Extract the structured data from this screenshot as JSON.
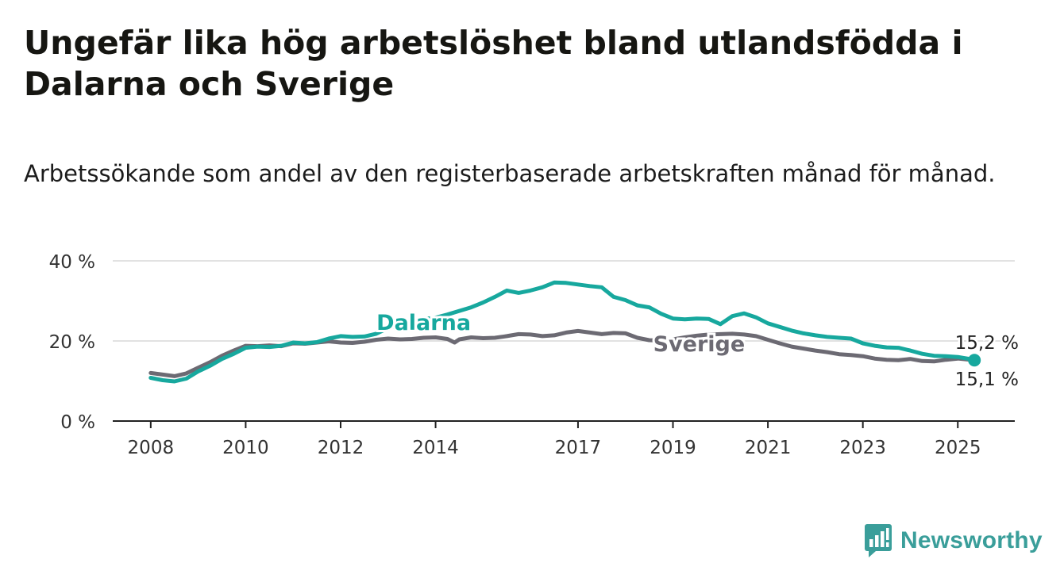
{
  "title": "Ungefär lika hög arbetslöshet bland utlandsfödda i Dalarna och Sverige",
  "subtitle": "Arbetssökande som andel av den registerbaserade arbetskraften månad för månad.",
  "brand": {
    "name": "Newsworthy",
    "color": "#3a9e9a"
  },
  "colors": {
    "dalarna": "#17a89e",
    "sverige": "#6c6a73",
    "grid": "#d9d9d9",
    "axis": "#222222"
  },
  "chart_data": {
    "type": "line",
    "xlabel": "",
    "ylabel": "",
    "ylim": [
      0,
      40
    ],
    "y_ticks": [
      "0 %",
      "20 %",
      "40 %"
    ],
    "y_tick_values": [
      0,
      20,
      40
    ],
    "x_ticks": [
      "2008",
      "2010",
      "2012",
      "2014",
      "2017",
      "2019",
      "2021",
      "2023",
      "2025"
    ],
    "x_tick_values": [
      2008,
      2010,
      2012,
      2014,
      2017,
      2019,
      2021,
      2023,
      2025
    ],
    "xlim": [
      2007.2,
      2026.2
    ],
    "grid": "horizontal",
    "series": [
      {
        "name": "Dalarna",
        "color": "#17a89e",
        "end_label": "15,2 %",
        "x": [
          2008.0,
          2008.25,
          2008.5,
          2008.75,
          2009.0,
          2009.25,
          2009.5,
          2009.75,
          2010.0,
          2010.25,
          2010.5,
          2010.75,
          2011.0,
          2011.25,
          2011.5,
          2011.75,
          2012.0,
          2012.25,
          2012.5,
          2012.75,
          2013.0,
          2013.25,
          2013.5,
          2013.75,
          2014.0,
          2014.25,
          2014.5,
          2014.75,
          2015.0,
          2015.25,
          2015.5,
          2015.75,
          2016.0,
          2016.25,
          2016.5,
          2016.75,
          2017.0,
          2017.25,
          2017.5,
          2017.75,
          2018.0,
          2018.25,
          2018.5,
          2018.75,
          2019.0,
          2019.25,
          2019.5,
          2019.75,
          2020.0,
          2020.25,
          2020.5,
          2020.75,
          2021.0,
          2021.25,
          2021.5,
          2021.75,
          2022.0,
          2022.25,
          2022.5,
          2022.75,
          2023.0,
          2023.25,
          2023.5,
          2023.75,
          2024.0,
          2024.25,
          2024.5,
          2024.75,
          2025.0,
          2025.25,
          2025.35
        ],
        "values": [
          10.8,
          10.2,
          9.9,
          10.6,
          12.4,
          13.8,
          15.5,
          16.8,
          18.3,
          18.6,
          18.5,
          18.8,
          19.6,
          19.4,
          19.7,
          20.6,
          21.2,
          21.0,
          21.1,
          21.8,
          23.2,
          24.0,
          24.8,
          25.5,
          25.8,
          26.6,
          27.5,
          28.4,
          29.6,
          31.0,
          32.6,
          32.0,
          32.6,
          33.4,
          34.6,
          34.5,
          34.1,
          33.7,
          33.4,
          31.0,
          30.2,
          28.9,
          28.4,
          26.8,
          25.6,
          25.4,
          25.6,
          25.5,
          24.2,
          26.2,
          26.9,
          25.9,
          24.4,
          23.5,
          22.6,
          21.9,
          21.4,
          21.0,
          20.8,
          20.6,
          19.4,
          18.8,
          18.4,
          18.3,
          17.6,
          16.8,
          16.3,
          16.2,
          16.0,
          15.5,
          15.2
        ]
      },
      {
        "name": "Sverige",
        "color": "#6c6a73",
        "end_label": "15,1 %",
        "x": [
          2008.0,
          2008.25,
          2008.5,
          2008.75,
          2009.0,
          2009.25,
          2009.5,
          2009.75,
          2010.0,
          2010.25,
          2010.5,
          2010.75,
          2011.0,
          2011.25,
          2011.5,
          2011.75,
          2012.0,
          2012.25,
          2012.5,
          2012.75,
          2013.0,
          2013.25,
          2013.5,
          2013.75,
          2014.0,
          2014.25,
          2014.4,
          2014.5,
          2014.75,
          2015.0,
          2015.25,
          2015.5,
          2015.75,
          2016.0,
          2016.25,
          2016.5,
          2016.75,
          2017.0,
          2017.25,
          2017.5,
          2017.75,
          2018.0,
          2018.25,
          2018.5,
          2018.75,
          2019.0,
          2019.25,
          2019.5,
          2019.75,
          2020.0,
          2020.25,
          2020.5,
          2020.75,
          2021.0,
          2021.25,
          2021.5,
          2021.75,
          2022.0,
          2022.25,
          2022.5,
          2022.75,
          2023.0,
          2023.25,
          2023.5,
          2023.75,
          2024.0,
          2024.25,
          2024.5,
          2024.75,
          2025.0,
          2025.25,
          2025.35
        ],
        "values": [
          12.0,
          11.6,
          11.2,
          11.9,
          13.3,
          14.7,
          16.3,
          17.6,
          18.8,
          18.7,
          18.9,
          18.7,
          19.4,
          19.3,
          19.6,
          19.9,
          19.6,
          19.5,
          19.8,
          20.3,
          20.6,
          20.4,
          20.5,
          20.8,
          20.9,
          20.5,
          19.6,
          20.4,
          20.9,
          20.7,
          20.8,
          21.2,
          21.7,
          21.6,
          21.2,
          21.4,
          22.1,
          22.5,
          22.1,
          21.7,
          22.0,
          21.9,
          20.8,
          20.2,
          20.1,
          20.4,
          20.9,
          21.3,
          21.6,
          21.7,
          21.8,
          21.6,
          21.2,
          20.3,
          19.4,
          18.6,
          18.1,
          17.6,
          17.2,
          16.7,
          16.5,
          16.2,
          15.6,
          15.3,
          15.2,
          15.5,
          15.0,
          14.9,
          15.3,
          15.6,
          15.3,
          15.1
        ]
      }
    ],
    "annotations": [
      {
        "text": "Dalarna",
        "series": "Dalarna",
        "x": 2013.75,
        "y": 24.8
      },
      {
        "text": "Sverige",
        "series": "Sverige",
        "x": 2019.55,
        "y": 19.4
      }
    ]
  }
}
